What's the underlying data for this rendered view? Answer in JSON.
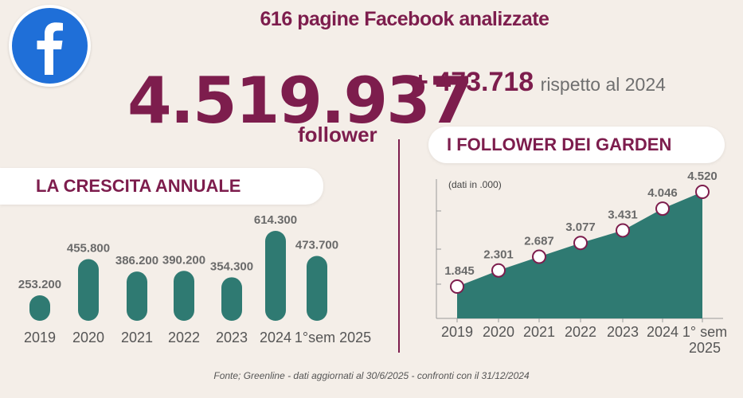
{
  "header": {
    "title": "616 pagine Facebook analizzate",
    "logo_icon": "facebook-icon"
  },
  "summary": {
    "followers_value": "4.519.937",
    "followers_label": "follower",
    "delta_value": "+ 473.718",
    "delta_text": "rispetto al 2024"
  },
  "colors": {
    "accent": "#7d1d4d",
    "bar_fill": "#2f7a72",
    "area_fill": "#2f7a72",
    "facebook_blue": "#1877f2",
    "background": "#f4eee8"
  },
  "chart_data": [
    {
      "type": "bar",
      "title": "LA CRESCITA ANNUALE",
      "categories": [
        "2019",
        "2020",
        "2021",
        "2022",
        "2023",
        "2024",
        "1°sem 2025"
      ],
      "values": [
        253200,
        455800,
        386200,
        390200,
        354300,
        614300,
        473700
      ],
      "value_labels": [
        "253.200",
        "455.800",
        "386.200",
        "390.200",
        "354.300",
        "614.300",
        "473.700"
      ],
      "grid": false
    },
    {
      "type": "area",
      "title": "I FOLLOWER DEI GARDEN",
      "note": "(dati in .000)",
      "categories": [
        "2019",
        "2020",
        "2021",
        "2022",
        "2023",
        "2024",
        "1° sem 2025"
      ],
      "values": [
        1845,
        2301,
        2687,
        3077,
        3431,
        4046,
        4520
      ],
      "value_labels": [
        "1.845",
        "2.301",
        "2.687",
        "3.077",
        "3.431",
        "4.046",
        "4.520"
      ],
      "grid": false
    }
  ],
  "footnote": "Fonte; Greenline - dati aggiornati al 30/6/2025 - confronti con il 31/12/2024"
}
